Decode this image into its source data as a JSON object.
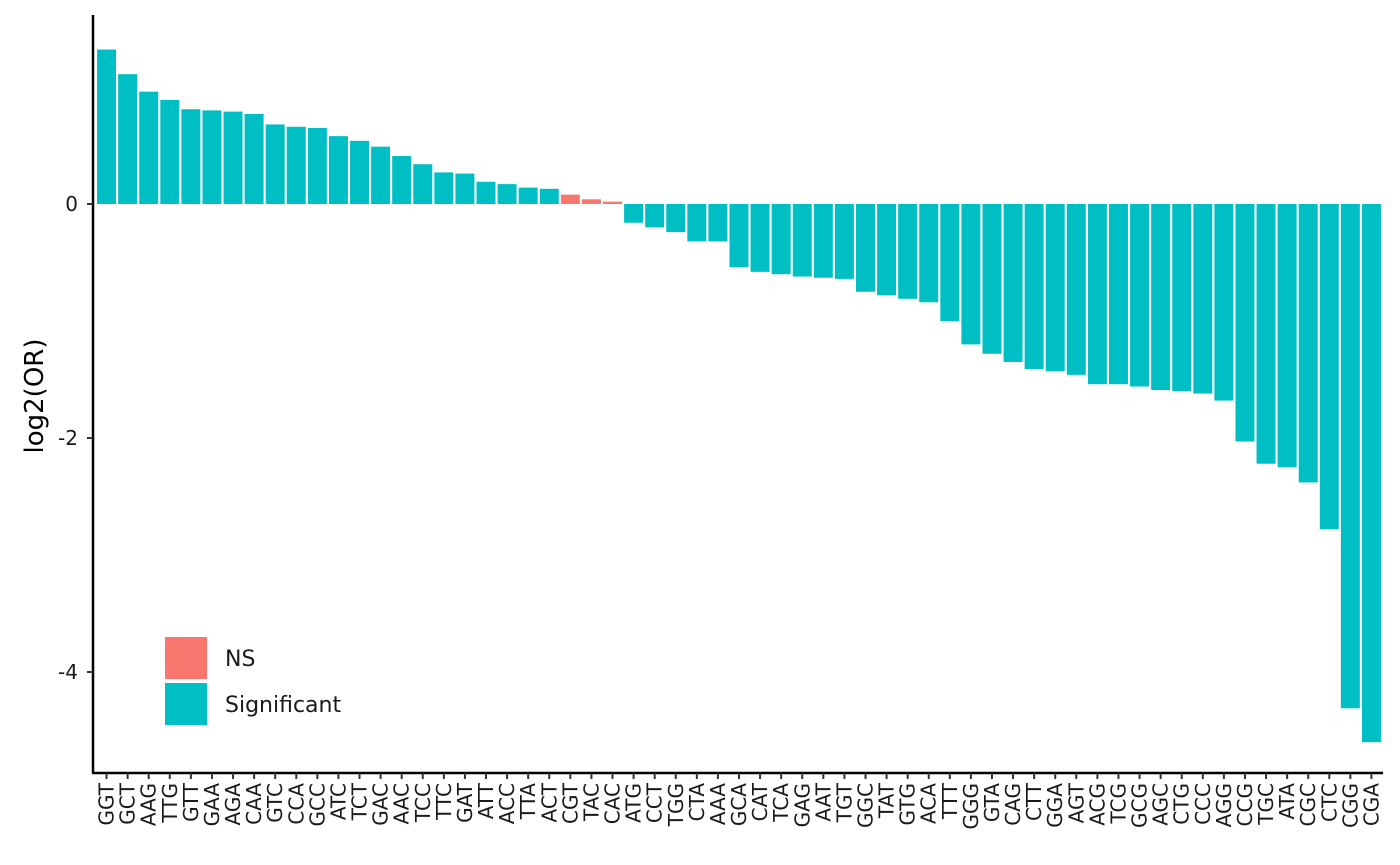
{
  "chart_data": {
    "type": "bar",
    "title": "",
    "xlabel": "",
    "ylabel": "log2(OR)",
    "ylim": [
      -4.9,
      1.6
    ],
    "yticks": [
      0,
      -2,
      -4
    ],
    "grid": false,
    "legend_position": "bottom-left",
    "legend": [
      {
        "label": "NS",
        "color": "#F8766D"
      },
      {
        "label": "Significant",
        "color": "#00BFC4"
      }
    ],
    "categories": [
      "GGT",
      "GCT",
      "AAG",
      "TTG",
      "GTT",
      "GAA",
      "AGA",
      "CAA",
      "GTC",
      "CCA",
      "GCC",
      "ATC",
      "TCT",
      "GAC",
      "AAC",
      "TCC",
      "TTC",
      "GAT",
      "ATT",
      "ACC",
      "TTA",
      "ACT",
      "CGT",
      "TAC",
      "CAC",
      "ATG",
      "CCT",
      "TGG",
      "CTA",
      "AAA",
      "GCA",
      "CAT",
      "TCA",
      "GAG",
      "AAT",
      "TGT",
      "GGC",
      "TAT",
      "GTG",
      "ACA",
      "TTT",
      "GGG",
      "GTA",
      "CAG",
      "CTT",
      "GGA",
      "AGT",
      "ACG",
      "TCG",
      "GCG",
      "AGC",
      "CTG",
      "CCC",
      "AGG",
      "CCG",
      "TGC",
      "ATA",
      "CGC",
      "CTC",
      "CGG",
      "CGA"
    ],
    "values": [
      1.32,
      1.11,
      0.96,
      0.89,
      0.81,
      0.8,
      0.79,
      0.77,
      0.68,
      0.66,
      0.65,
      0.58,
      0.54,
      0.49,
      0.41,
      0.34,
      0.27,
      0.26,
      0.19,
      0.17,
      0.14,
      0.13,
      0.08,
      0.04,
      0.02,
      -0.16,
      -0.2,
      -0.24,
      -0.32,
      -0.32,
      -0.54,
      -0.58,
      -0.6,
      -0.62,
      -0.63,
      -0.64,
      -0.75,
      -0.78,
      -0.81,
      -0.84,
      -1.0,
      -1.2,
      -1.28,
      -1.35,
      -1.41,
      -1.43,
      -1.46,
      -1.54,
      -1.54,
      -1.56,
      -1.59,
      -1.6,
      -1.62,
      -1.68,
      -2.03,
      -2.22,
      -2.25,
      -2.38,
      -2.78,
      -4.31,
      -4.6
    ],
    "status": [
      "Significant",
      "Significant",
      "Significant",
      "Significant",
      "Significant",
      "Significant",
      "Significant",
      "Significant",
      "Significant",
      "Significant",
      "Significant",
      "Significant",
      "Significant",
      "Significant",
      "Significant",
      "Significant",
      "Significant",
      "Significant",
      "Significant",
      "Significant",
      "Significant",
      "Significant",
      "NS",
      "NS",
      "NS",
      "Significant",
      "Significant",
      "Significant",
      "Significant",
      "Significant",
      "Significant",
      "Significant",
      "Significant",
      "Significant",
      "Significant",
      "Significant",
      "Significant",
      "Significant",
      "Significant",
      "Significant",
      "Significant",
      "Significant",
      "Significant",
      "Significant",
      "Significant",
      "Significant",
      "Significant",
      "Significant",
      "Significant",
      "Significant",
      "Significant",
      "Significant",
      "Significant",
      "Significant",
      "Significant",
      "Significant",
      "Significant",
      "Significant",
      "Significant",
      "Significant",
      "Significant"
    ]
  }
}
